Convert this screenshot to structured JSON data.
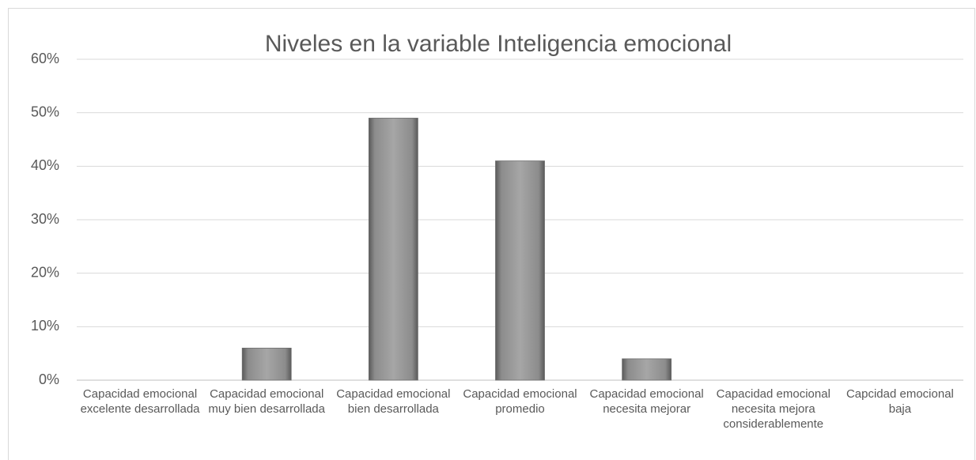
{
  "chart_data": {
    "type": "bar",
    "title": "Niveles en la variable Inteligencia emocional",
    "categories": [
      "Capacidad emocional excelente desarrollada",
      "Capacidad emocional muy bien desarrollada",
      "Capacidad emocional bien desarrollada",
      "Capacidad emocional promedio",
      "Capacidad emocional necesita mejorar",
      "Capacidad emocional necesita mejora considerablemente",
      "Capcidad emocional baja"
    ],
    "values": [
      0,
      6,
      49,
      41,
      4,
      0,
      0
    ],
    "color": "#a6a6a6",
    "ylim": [
      0,
      60
    ],
    "yticks": [
      {
        "value": 0,
        "label": "0%"
      },
      {
        "value": 10,
        "label": "10%"
      },
      {
        "value": 20,
        "label": "20%"
      },
      {
        "value": 30,
        "label": "30%"
      },
      {
        "value": 40,
        "label": "40%"
      },
      {
        "value": 50,
        "label": "50%"
      },
      {
        "value": 60,
        "label": "60%"
      }
    ],
    "grid": true
  }
}
